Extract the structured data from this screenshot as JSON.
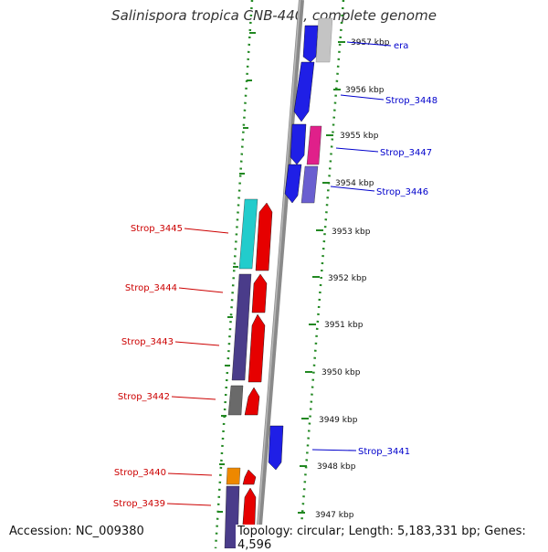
{
  "title": "Salinispora tropica CNB-440, complete genome",
  "accession": "Accession: NC_009380",
  "topology": "Topology: circular; Length: 5,183,331 bp; Genes: 4,596",
  "colors": {
    "label_left": "#cc0000",
    "label_right": "#0000cc",
    "backbone": "#8a8a8a",
    "dots": "#228822"
  },
  "ticks": [
    {
      "label": "3957 kbp"
    },
    {
      "label": "3956 kbp"
    },
    {
      "label": "3955 kbp"
    },
    {
      "label": "3954 kbp"
    },
    {
      "label": "3953 kbp"
    },
    {
      "label": "3952 kbp"
    },
    {
      "label": "3951 kbp"
    },
    {
      "label": "3950 kbp"
    },
    {
      "label": "3949 kbp"
    },
    {
      "label": "3948 kbp"
    },
    {
      "label": "3947 kbp"
    }
  ],
  "gene_labels_right": [
    "era",
    "Strop_3448",
    "Strop_3447",
    "Strop_3446",
    "Strop_3441"
  ],
  "gene_labels_left": [
    "Strop_3445",
    "Strop_3444",
    "Strop_3443",
    "Strop_3442",
    "Strop_3440",
    "Strop_3439"
  ]
}
